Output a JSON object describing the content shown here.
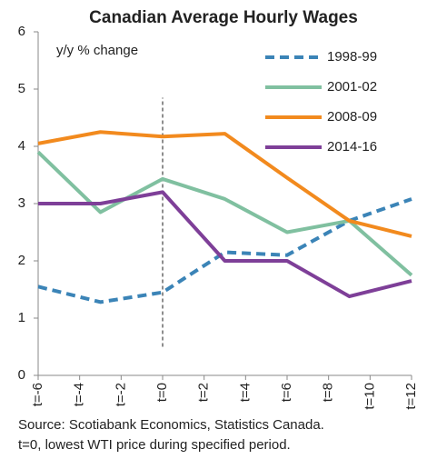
{
  "chart_data": {
    "type": "line",
    "title": "Canadian Average Hourly Wages",
    "subtitle": "y/y % change",
    "source": [
      "Source: Scotiabank Economics, Statistics Canada.",
      "t=0,  lowest WTI price during specified period."
    ],
    "x": [
      -6,
      -3,
      0,
      3,
      6,
      9,
      12
    ],
    "series": [
      {
        "name": "1998-99",
        "color": "#3b84b7",
        "linestyle": "dashed",
        "values": [
          1.55,
          1.28,
          1.45,
          2.15,
          2.1,
          2.7,
          3.08
        ]
      },
      {
        "name": "2001-02",
        "color": "#80c0a0",
        "linestyle": "solid",
        "values": [
          3.9,
          2.85,
          3.43,
          3.08,
          2.5,
          2.7,
          1.75
        ]
      },
      {
        "name": "2008-09",
        "color": "#f28a1e",
        "linestyle": "solid",
        "values": [
          4.05,
          4.25,
          4.17,
          4.22,
          3.45,
          2.7,
          2.43
        ]
      },
      {
        "name": "2014-16",
        "color": "#7e3f98",
        "linestyle": "solid",
        "values": [
          3.0,
          3.0,
          3.2,
          2.0,
          2.0,
          1.38,
          1.65
        ]
      }
    ],
    "reference_line": {
      "x": 0,
      "from": 0.5,
      "to": 4.85
    },
    "xlim": [
      -6,
      12
    ],
    "xticks": [
      {
        "value": -6,
        "label": "t=-6"
      },
      {
        "value": -4,
        "label": "t=-4"
      },
      {
        "value": -2,
        "label": "t=-2"
      },
      {
        "value": 0,
        "label": "t=0"
      },
      {
        "value": 2,
        "label": "t=2"
      },
      {
        "value": 4,
        "label": "t=4"
      },
      {
        "value": 6,
        "label": "t=6"
      },
      {
        "value": 8,
        "label": "t=8"
      },
      {
        "value": 10,
        "label": "t=10"
      },
      {
        "value": 12,
        "label": "t=12"
      }
    ],
    "ylim": [
      0,
      6
    ],
    "yticks": [
      0,
      1,
      2,
      3,
      4,
      5,
      6
    ],
    "grid": false,
    "legend": "top-right"
  }
}
